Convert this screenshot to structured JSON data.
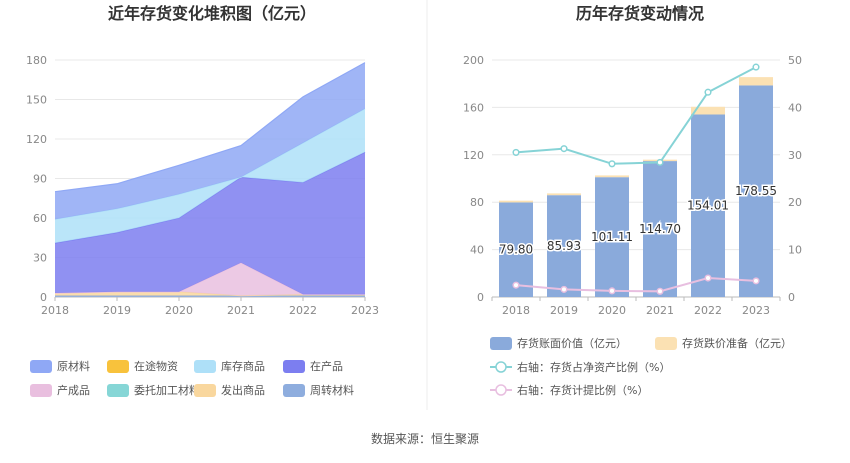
{
  "source_text": "数据来源：恒生聚源",
  "chart_data": [
    {
      "type": "area",
      "title": "近年存货变化堆积图（亿元）",
      "x": [
        "2018",
        "2019",
        "2020",
        "2021",
        "2022",
        "2023"
      ],
      "ylim": [
        0,
        180
      ],
      "yticks": [
        "0",
        "30",
        "60",
        "90",
        "120",
        "150",
        "180"
      ],
      "stacked": true,
      "grid": true,
      "legend_position": "bottom",
      "series": [
        {
          "name": "原材料",
          "color": "#8fa8f5",
          "values": [
            21,
            19,
            22,
            24,
            35,
            35
          ]
        },
        {
          "name": "在途物资",
          "color": "#f8c23c",
          "values": [
            0,
            0,
            0,
            0,
            0,
            0
          ]
        },
        {
          "name": "库存商品",
          "color": "#aee0f8",
          "values": [
            18,
            18,
            18,
            0,
            30,
            33
          ]
        },
        {
          "name": "在产品",
          "color": "#7c7ef0",
          "values": [
            38,
            45,
            56,
            65,
            85,
            108
          ]
        },
        {
          "name": "产成品",
          "color": "#e9bfdf",
          "values": [
            0,
            0,
            0,
            25,
            0,
            0
          ]
        },
        {
          "name": "委托加工材料",
          "color": "#86d6d6",
          "values": [
            0,
            0,
            0,
            0,
            0,
            0
          ]
        },
        {
          "name": "发出商品",
          "color": "#f9d79e",
          "values": [
            2,
            3,
            3,
            0,
            1,
            1
          ]
        },
        {
          "name": "周转材料",
          "color": "#8eadde",
          "values": [
            1,
            1,
            1,
            1,
            1,
            1
          ]
        }
      ]
    },
    {
      "type": "bar",
      "title": "历年存货变动情况",
      "categories": [
        "2018",
        "2019",
        "2020",
        "2021",
        "2022",
        "2023"
      ],
      "ylim": [
        0,
        200
      ],
      "yticks": [
        "0",
        "40",
        "80",
        "120",
        "160",
        "200"
      ],
      "y2lim": [
        0,
        50
      ],
      "y2ticks": [
        "0",
        "10",
        "20",
        "30",
        "40",
        "50"
      ],
      "stacked": true,
      "grid": true,
      "legend_position": "bottom",
      "series": [
        {
          "name": "存货账面价值（亿元）",
          "color": "#8aaadb",
          "values": [
            79.8,
            85.93,
            101.11,
            114.7,
            154.01,
            178.55
          ],
          "labels": [
            "79.80",
            "85.93",
            "101.11",
            "114.70",
            "154.01",
            "178.55"
          ]
        },
        {
          "name": "存货跌价准备（亿元）",
          "color": "#fbe1b3",
          "values": [
            1.5,
            1.5,
            1.5,
            1.2,
            6.5,
            7.0
          ]
        }
      ],
      "line_series": [
        {
          "name": "右轴：存货占净资产比例（%）",
          "color": "#86d3d6",
          "values": [
            30.5,
            31.3,
            28.1,
            28.4,
            43.2,
            48.5
          ]
        },
        {
          "name": "右轴：存货计提比例（%）",
          "color": "#e8bfe0",
          "values": [
            2.5,
            1.6,
            1.3,
            1.2,
            4.0,
            3.4
          ]
        }
      ]
    }
  ]
}
